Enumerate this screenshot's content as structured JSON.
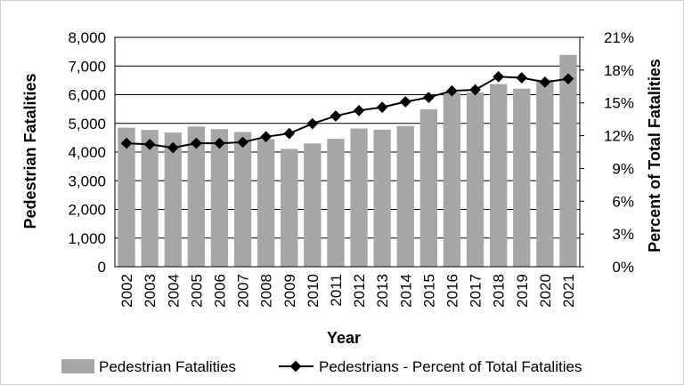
{
  "chart_data": {
    "type": "bar+line",
    "categories": [
      "2002",
      "2003",
      "2004",
      "2005",
      "2006",
      "2007",
      "2008",
      "2009",
      "2010",
      "2011",
      "2012",
      "2013",
      "2014",
      "2015",
      "2016",
      "2017",
      "2018",
      "2019",
      "2020",
      "2021"
    ],
    "series": [
      {
        "name": "Pedestrian Fatalities",
        "type": "bar",
        "axis": "left",
        "color": "#a6a6a6",
        "values": [
          4850,
          4770,
          4680,
          4890,
          4800,
          4700,
          4450,
          4110,
          4300,
          4460,
          4820,
          4780,
          4910,
          5490,
          6080,
          6080,
          6370,
          6210,
          6520,
          7390
        ]
      },
      {
        "name": "Pedestrians - Percent of Total Fatalities",
        "type": "line",
        "axis": "right",
        "color": "#000000",
        "values": [
          11.3,
          11.2,
          10.9,
          11.3,
          11.3,
          11.4,
          11.9,
          12.2,
          13.1,
          13.8,
          14.3,
          14.6,
          15.1,
          15.5,
          16.1,
          16.2,
          17.4,
          17.3,
          16.9,
          17.2
        ]
      }
    ],
    "xlabel": "Year",
    "ylabel": "Pedestrian Fatalities",
    "y2label": "Percent of Total Fatalities",
    "ylim": [
      0,
      8000
    ],
    "y2lim": [
      0,
      21
    ],
    "yticks": [
      "0",
      "1,000",
      "2,000",
      "3,000",
      "4,000",
      "5,000",
      "6,000",
      "7,000",
      "8,000"
    ],
    "y2ticks": [
      "0%",
      "3%",
      "6%",
      "9%",
      "12%",
      "15%",
      "18%",
      "21%"
    ],
    "grid": "horizontal",
    "legend_position": "bottom"
  }
}
